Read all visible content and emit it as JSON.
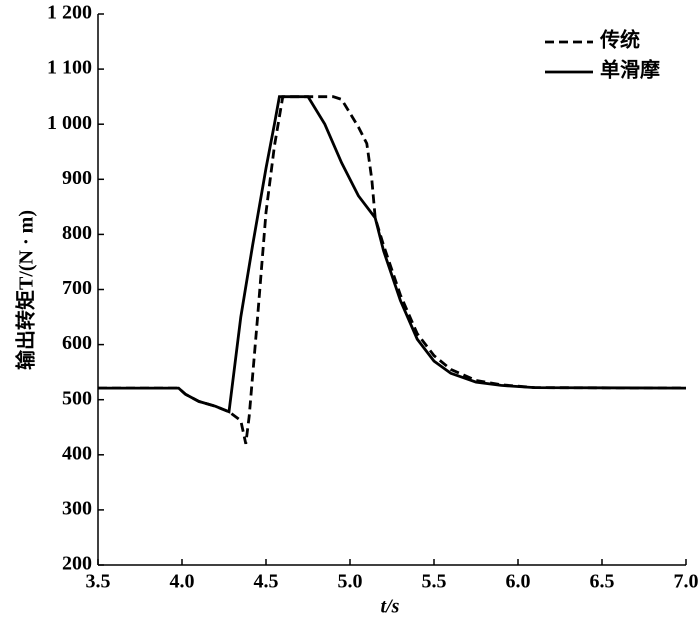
{
  "chart_data": {
    "type": "line",
    "x_label": "t/s",
    "y_label": "输出转矩T/(N · m)",
    "xlim": [
      3.5,
      7.0
    ],
    "xticks": [
      3.5,
      {
        "value": 4.0,
        "label": "4.0"
      },
      4.5,
      {
        "value": 5.0,
        "label": "5.0"
      },
      5.5,
      {
        "value": 6.0,
        "label": "6.0"
      },
      6.5,
      {
        "value": 7.0,
        "label": "7.0"
      }
    ],
    "ylim": [
      200,
      1200
    ],
    "yticks": [
      200,
      300,
      400,
      500,
      600,
      700,
      800,
      900,
      {
        "value": 1000,
        "label": "1 000"
      },
      {
        "value": 1100,
        "label": "1 100"
      },
      {
        "value": 1200,
        "label": "1 200"
      }
    ],
    "legend": "upper right",
    "series": [
      {
        "name": "传统",
        "color": "#000000",
        "line_style": "dashed",
        "x": [
          3.5,
          3.98,
          4.02,
          4.1,
          4.2,
          4.28,
          4.35,
          4.38,
          4.4,
          4.45,
          4.5,
          4.55,
          4.6,
          4.9,
          4.95,
          5.0,
          5.05,
          5.1,
          5.13,
          5.15,
          5.2,
          5.3,
          5.4,
          5.5,
          5.6,
          5.75,
          5.9,
          6.1,
          7.0
        ],
        "values": [
          521,
          521,
          510,
          497,
          488,
          478,
          462,
          420,
          470,
          650,
          840,
          960,
          1050,
          1050,
          1045,
          1020,
          995,
          965,
          900,
          830,
          780,
          690,
          620,
          580,
          555,
          535,
          527,
          522,
          521
        ]
      },
      {
        "name": "单滑摩",
        "color": "#000000",
        "line_style": "solid",
        "x": [
          3.5,
          3.98,
          4.02,
          4.1,
          4.2,
          4.28,
          4.35,
          4.42,
          4.5,
          4.55,
          4.58,
          4.75,
          4.85,
          4.95,
          5.05,
          5.15,
          5.2,
          5.3,
          5.4,
          5.5,
          5.6,
          5.75,
          5.9,
          6.1,
          7.0
        ],
        "values": [
          521,
          521,
          510,
          497,
          488,
          478,
          650,
          780,
          920,
          1000,
          1050,
          1050,
          1000,
          930,
          870,
          830,
          770,
          680,
          610,
          570,
          548,
          532,
          526,
          522,
          521
        ]
      }
    ]
  }
}
